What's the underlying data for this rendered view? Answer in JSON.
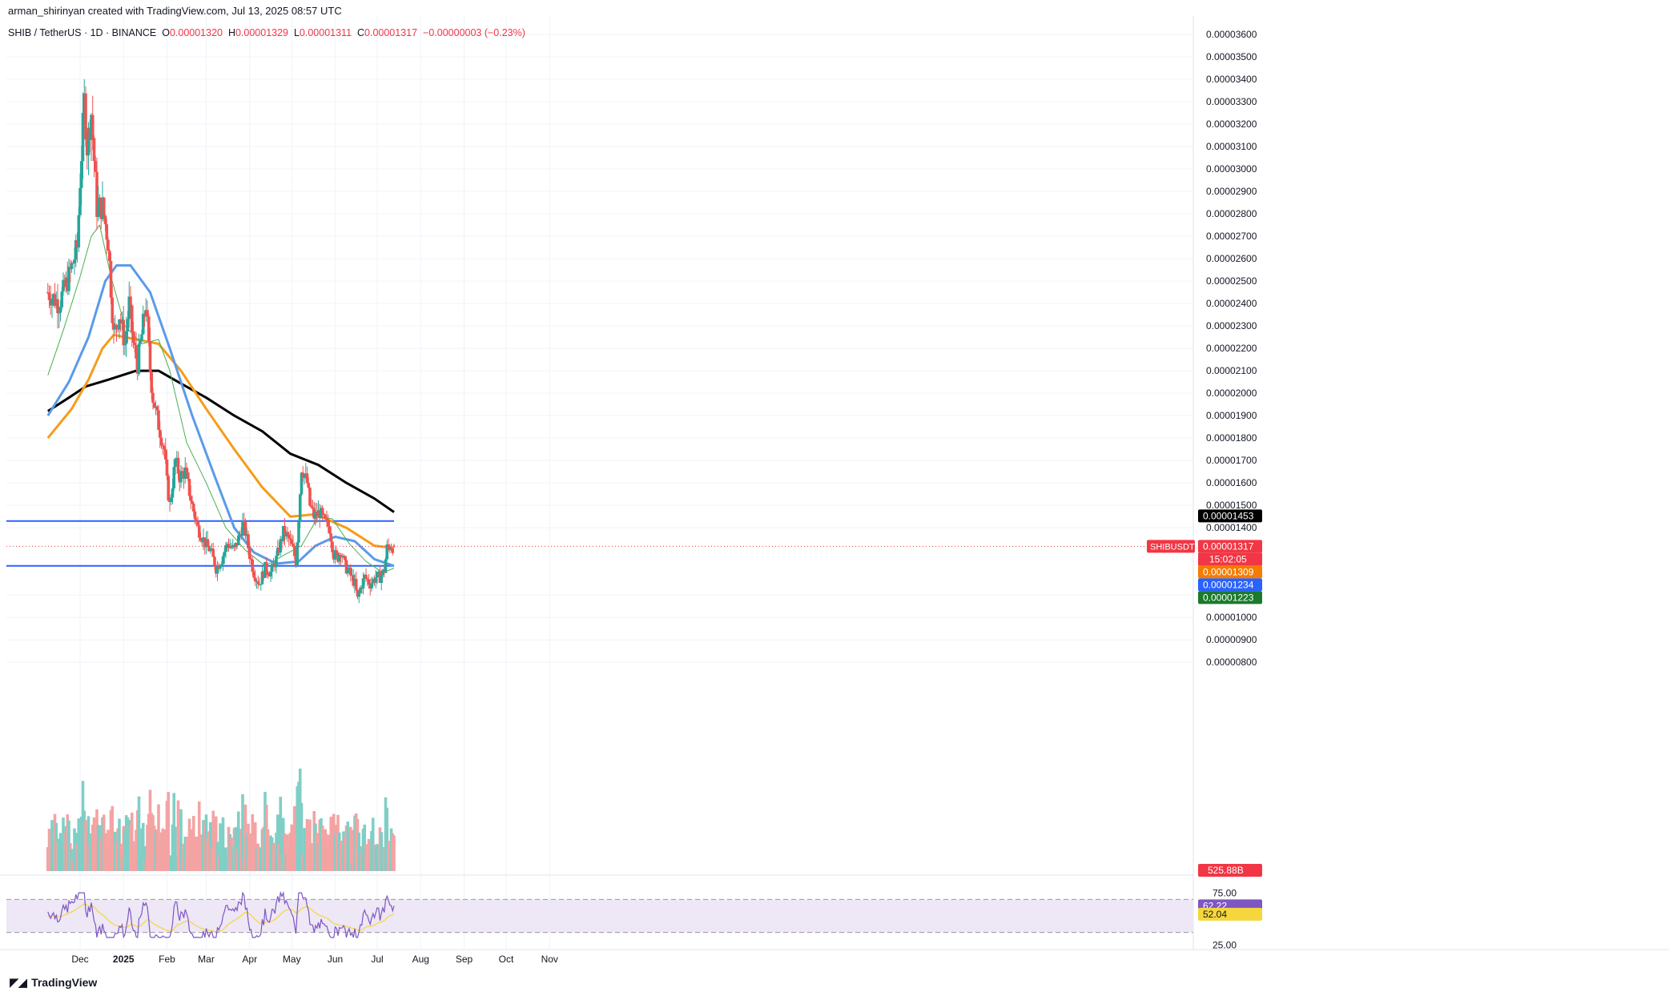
{
  "header": {
    "created_by": "arman_shirinyan created with TradingView.com, Jul 13, 2025 08:57 UTC"
  },
  "legend": {
    "symbol": "SHIB / TetherUS · 1D · BINANCE",
    "o_label": "O",
    "o": "0.00001320",
    "h_label": "H",
    "h": "0.00001329",
    "l_label": "L",
    "l": "0.00001311",
    "c_label": "C",
    "c": "0.00001317",
    "change": "−0.00000003 (−0.23%)"
  },
  "brand": {
    "name": "TradingView",
    "icon": "tradingview-logo-icon"
  },
  "colors": {
    "up": "#26a69a",
    "down": "#ef5350",
    "up_vol": "#7fcfc6",
    "down_vol": "#f4a3a3",
    "ma20": "#4caf50",
    "ma50": "#5a9be8",
    "ma100": "#f59c1a",
    "ma200": "#000000",
    "hline": "#2962ff",
    "rsi": "#7e57c2",
    "rsi_ma": "#f5d63c",
    "rsi_band": "#ede7f6"
  },
  "chart_data": {
    "type": "candlestick",
    "price_axis_ticks": [
      "0.00003600",
      "0.00003500",
      "0.00003400",
      "0.00003300",
      "0.00003200",
      "0.00003100",
      "0.00003000",
      "0.00002900",
      "0.00002800",
      "0.00002700",
      "0.00002600",
      "0.00002500",
      "0.00002400",
      "0.00002300",
      "0.00002200",
      "0.00002100",
      "0.00002000",
      "0.00001900",
      "0.00001800",
      "0.00001700",
      "0.00001600",
      "0.00001500",
      "0.00001400",
      "0.00001100",
      "0.00001000",
      "0.00000900",
      "0.00000800"
    ],
    "ylim": [
      7.9e-06,
      3.65e-05
    ],
    "x_axis_ticks": [
      "Dec",
      "2025",
      "Feb",
      "Mar",
      "Apr",
      "May",
      "Jun",
      "Jul",
      "Aug",
      "Sep",
      "Oct",
      "Nov"
    ],
    "x_axis_tick_days": [
      0,
      31,
      62,
      90,
      121,
      151,
      182,
      212,
      243,
      274,
      304,
      335
    ],
    "first_candle_day": -23,
    "last_candle_day": 224,
    "close_anchors": [
      [
        -23,
        2.45e-05
      ],
      [
        -15,
        2.4e-05
      ],
      [
        -8,
        2.52e-05
      ],
      [
        -2,
        2.65e-05
      ],
      [
        0,
        2.95e-05
      ],
      [
        3,
        3.3e-05
      ],
      [
        5,
        3.1e-05
      ],
      [
        8,
        3.25e-05
      ],
      [
        12,
        2.83e-05
      ],
      [
        16,
        2.83e-05
      ],
      [
        20,
        2.68e-05
      ],
      [
        24,
        2.26e-05
      ],
      [
        28,
        2.35e-05
      ],
      [
        32,
        2.22e-05
      ],
      [
        35,
        2.4e-05
      ],
      [
        38,
        2.22e-05
      ],
      [
        41,
        2.13e-05
      ],
      [
        44,
        2.26e-05
      ],
      [
        47,
        2.4e-05
      ],
      [
        50,
        2.1e-05
      ],
      [
        52,
        1.98e-05
      ],
      [
        56,
        1.86e-05
      ],
      [
        60,
        1.75e-05
      ],
      [
        62,
        1.6e-05
      ],
      [
        64,
        1.5e-05
      ],
      [
        68,
        1.7e-05
      ],
      [
        71,
        1.63e-05
      ],
      [
        75,
        1.65e-05
      ],
      [
        80,
        1.5e-05
      ],
      [
        84,
        1.4e-05
      ],
      [
        90,
        1.32e-05
      ],
      [
        93,
        1.3e-05
      ],
      [
        97,
        1.22e-05
      ],
      [
        101,
        1.26e-05
      ],
      [
        105,
        1.33e-05
      ],
      [
        110,
        1.3e-05
      ],
      [
        114,
        1.37e-05
      ],
      [
        116,
        1.42e-05
      ],
      [
        118,
        1.38e-05
      ],
      [
        121,
        1.28e-05
      ],
      [
        124,
        1.2e-05
      ],
      [
        128,
        1.15e-05
      ],
      [
        132,
        1.22e-05
      ],
      [
        136,
        1.2e-05
      ],
      [
        140,
        1.26e-05
      ],
      [
        145,
        1.38e-05
      ],
      [
        149,
        1.35e-05
      ],
      [
        152,
        1.3e-05
      ],
      [
        154,
        1.25e-05
      ],
      [
        156,
        1.45e-05
      ],
      [
        158,
        1.67e-05
      ],
      [
        162,
        1.6e-05
      ],
      [
        164,
        1.5e-05
      ],
      [
        167,
        1.45e-05
      ],
      [
        171,
        1.47e-05
      ],
      [
        174,
        1.43e-05
      ],
      [
        178,
        1.4e-05
      ],
      [
        181,
        1.28e-05
      ],
      [
        184,
        1.27e-05
      ],
      [
        186,
        1.3e-05
      ],
      [
        189,
        1.23e-05
      ],
      [
        192,
        1.2e-05
      ],
      [
        196,
        1.15e-05
      ],
      [
        198,
        1.08e-05
      ],
      [
        200,
        1.13e-05
      ],
      [
        203,
        1.18e-05
      ],
      [
        207,
        1.15e-05
      ],
      [
        211,
        1.18e-05
      ],
      [
        214,
        1.18e-05
      ],
      [
        217,
        1.21e-05
      ],
      [
        219,
        1.31e-05
      ],
      [
        222,
        1.32e-05
      ],
      [
        224,
        1.31e-05
      ]
    ],
    "volume_axis_label": "525.88B",
    "lines": [
      {
        "name": "MA 200",
        "color": "#000000",
        "points": [
          [
            -23,
            1.92e-05
          ],
          [
            -8,
            1.98e-05
          ],
          [
            4,
            2.03e-05
          ],
          [
            20,
            2.06e-05
          ],
          [
            40,
            2.1e-05
          ],
          [
            56,
            2.1e-05
          ],
          [
            70,
            2.05e-05
          ],
          [
            90,
            1.98e-05
          ],
          [
            110,
            1.9e-05
          ],
          [
            130,
            1.83e-05
          ],
          [
            150,
            1.73e-05
          ],
          [
            170,
            1.68e-05
          ],
          [
            190,
            1.6e-05
          ],
          [
            210,
            1.53e-05
          ],
          [
            224,
            1.47e-05
          ]
        ]
      },
      {
        "name": "MA 100",
        "color": "#f59c1a",
        "points": [
          [
            -23,
            1.8e-05
          ],
          [
            -6,
            1.93e-05
          ],
          [
            6,
            2.06e-05
          ],
          [
            16,
            2.2e-05
          ],
          [
            24,
            2.26e-05
          ],
          [
            40,
            2.24e-05
          ],
          [
            56,
            2.22e-05
          ],
          [
            72,
            2.1e-05
          ],
          [
            90,
            1.93e-05
          ],
          [
            110,
            1.75e-05
          ],
          [
            130,
            1.58e-05
          ],
          [
            150,
            1.45e-05
          ],
          [
            168,
            1.46e-05
          ],
          [
            190,
            1.4e-05
          ],
          [
            210,
            1.32e-05
          ],
          [
            224,
            1.31e-05
          ]
        ]
      },
      {
        "name": "MA 50",
        "color": "#5a9be8",
        "points": [
          [
            -23,
            1.9e-05
          ],
          [
            -8,
            2.05e-05
          ],
          [
            6,
            2.25e-05
          ],
          [
            18,
            2.5e-05
          ],
          [
            26,
            2.57e-05
          ],
          [
            36,
            2.57e-05
          ],
          [
            50,
            2.45e-05
          ],
          [
            64,
            2.2e-05
          ],
          [
            80,
            1.9e-05
          ],
          [
            96,
            1.63e-05
          ],
          [
            110,
            1.4e-05
          ],
          [
            124,
            1.29e-05
          ],
          [
            140,
            1.24e-05
          ],
          [
            156,
            1.25e-05
          ],
          [
            168,
            1.32e-05
          ],
          [
            182,
            1.36e-05
          ],
          [
            196,
            1.34e-05
          ],
          [
            210,
            1.26e-05
          ],
          [
            224,
            1.23e-05
          ]
        ]
      },
      {
        "name": "MA 20",
        "color": "#4caf50",
        "points": [
          [
            -23,
            2.08e-05
          ],
          [
            -12,
            2.28e-05
          ],
          [
            0,
            2.52e-05
          ],
          [
            8,
            2.7e-05
          ],
          [
            14,
            2.75e-05
          ],
          [
            22,
            2.52e-05
          ],
          [
            32,
            2.3e-05
          ],
          [
            44,
            2.22e-05
          ],
          [
            56,
            2.24e-05
          ],
          [
            64,
            2.1e-05
          ],
          [
            76,
            1.78e-05
          ],
          [
            90,
            1.6e-05
          ],
          [
            104,
            1.4e-05
          ],
          [
            118,
            1.3e-05
          ],
          [
            132,
            1.23e-05
          ],
          [
            146,
            1.28e-05
          ],
          [
            158,
            1.32e-05
          ],
          [
            170,
            1.45e-05
          ],
          [
            180,
            1.44e-05
          ],
          [
            192,
            1.33e-05
          ],
          [
            204,
            1.25e-05
          ],
          [
            216,
            1.2e-05
          ],
          [
            224,
            1.22e-05
          ]
        ]
      }
    ],
    "horizontal_levels": [
      1.43e-05,
      1.23e-05
    ],
    "price_labels": [
      {
        "text": "0.00001453",
        "value": 1.453e-05,
        "bg": "#000000",
        "fg": "#ffffff"
      },
      {
        "text": "0.00001317",
        "value": 1.317e-05,
        "bg": "#f23645",
        "fg": "#ffffff",
        "sub": "15:02:05",
        "symbol_tag": "SHIBUSDT"
      },
      {
        "text": "0.00001309",
        "value": 1.309e-05,
        "bg": "#f57c00",
        "fg": "#ffffff"
      },
      {
        "text": "0.00001234",
        "value": 1.234e-05,
        "bg": "#2962ff",
        "fg": "#ffffff"
      },
      {
        "text": "0.00001223",
        "value": 1.223e-05,
        "bg": "#1b7a2b",
        "fg": "#ffffff"
      }
    ],
    "rsi": {
      "upper": "75.00",
      "lower": "25.00",
      "value_label": "62.22",
      "ma_label": "52.04",
      "ylim": [
        20,
        80
      ],
      "upper_band": 70,
      "lower_band": 30,
      "value": 62.22,
      "ma": 52.04
    }
  }
}
